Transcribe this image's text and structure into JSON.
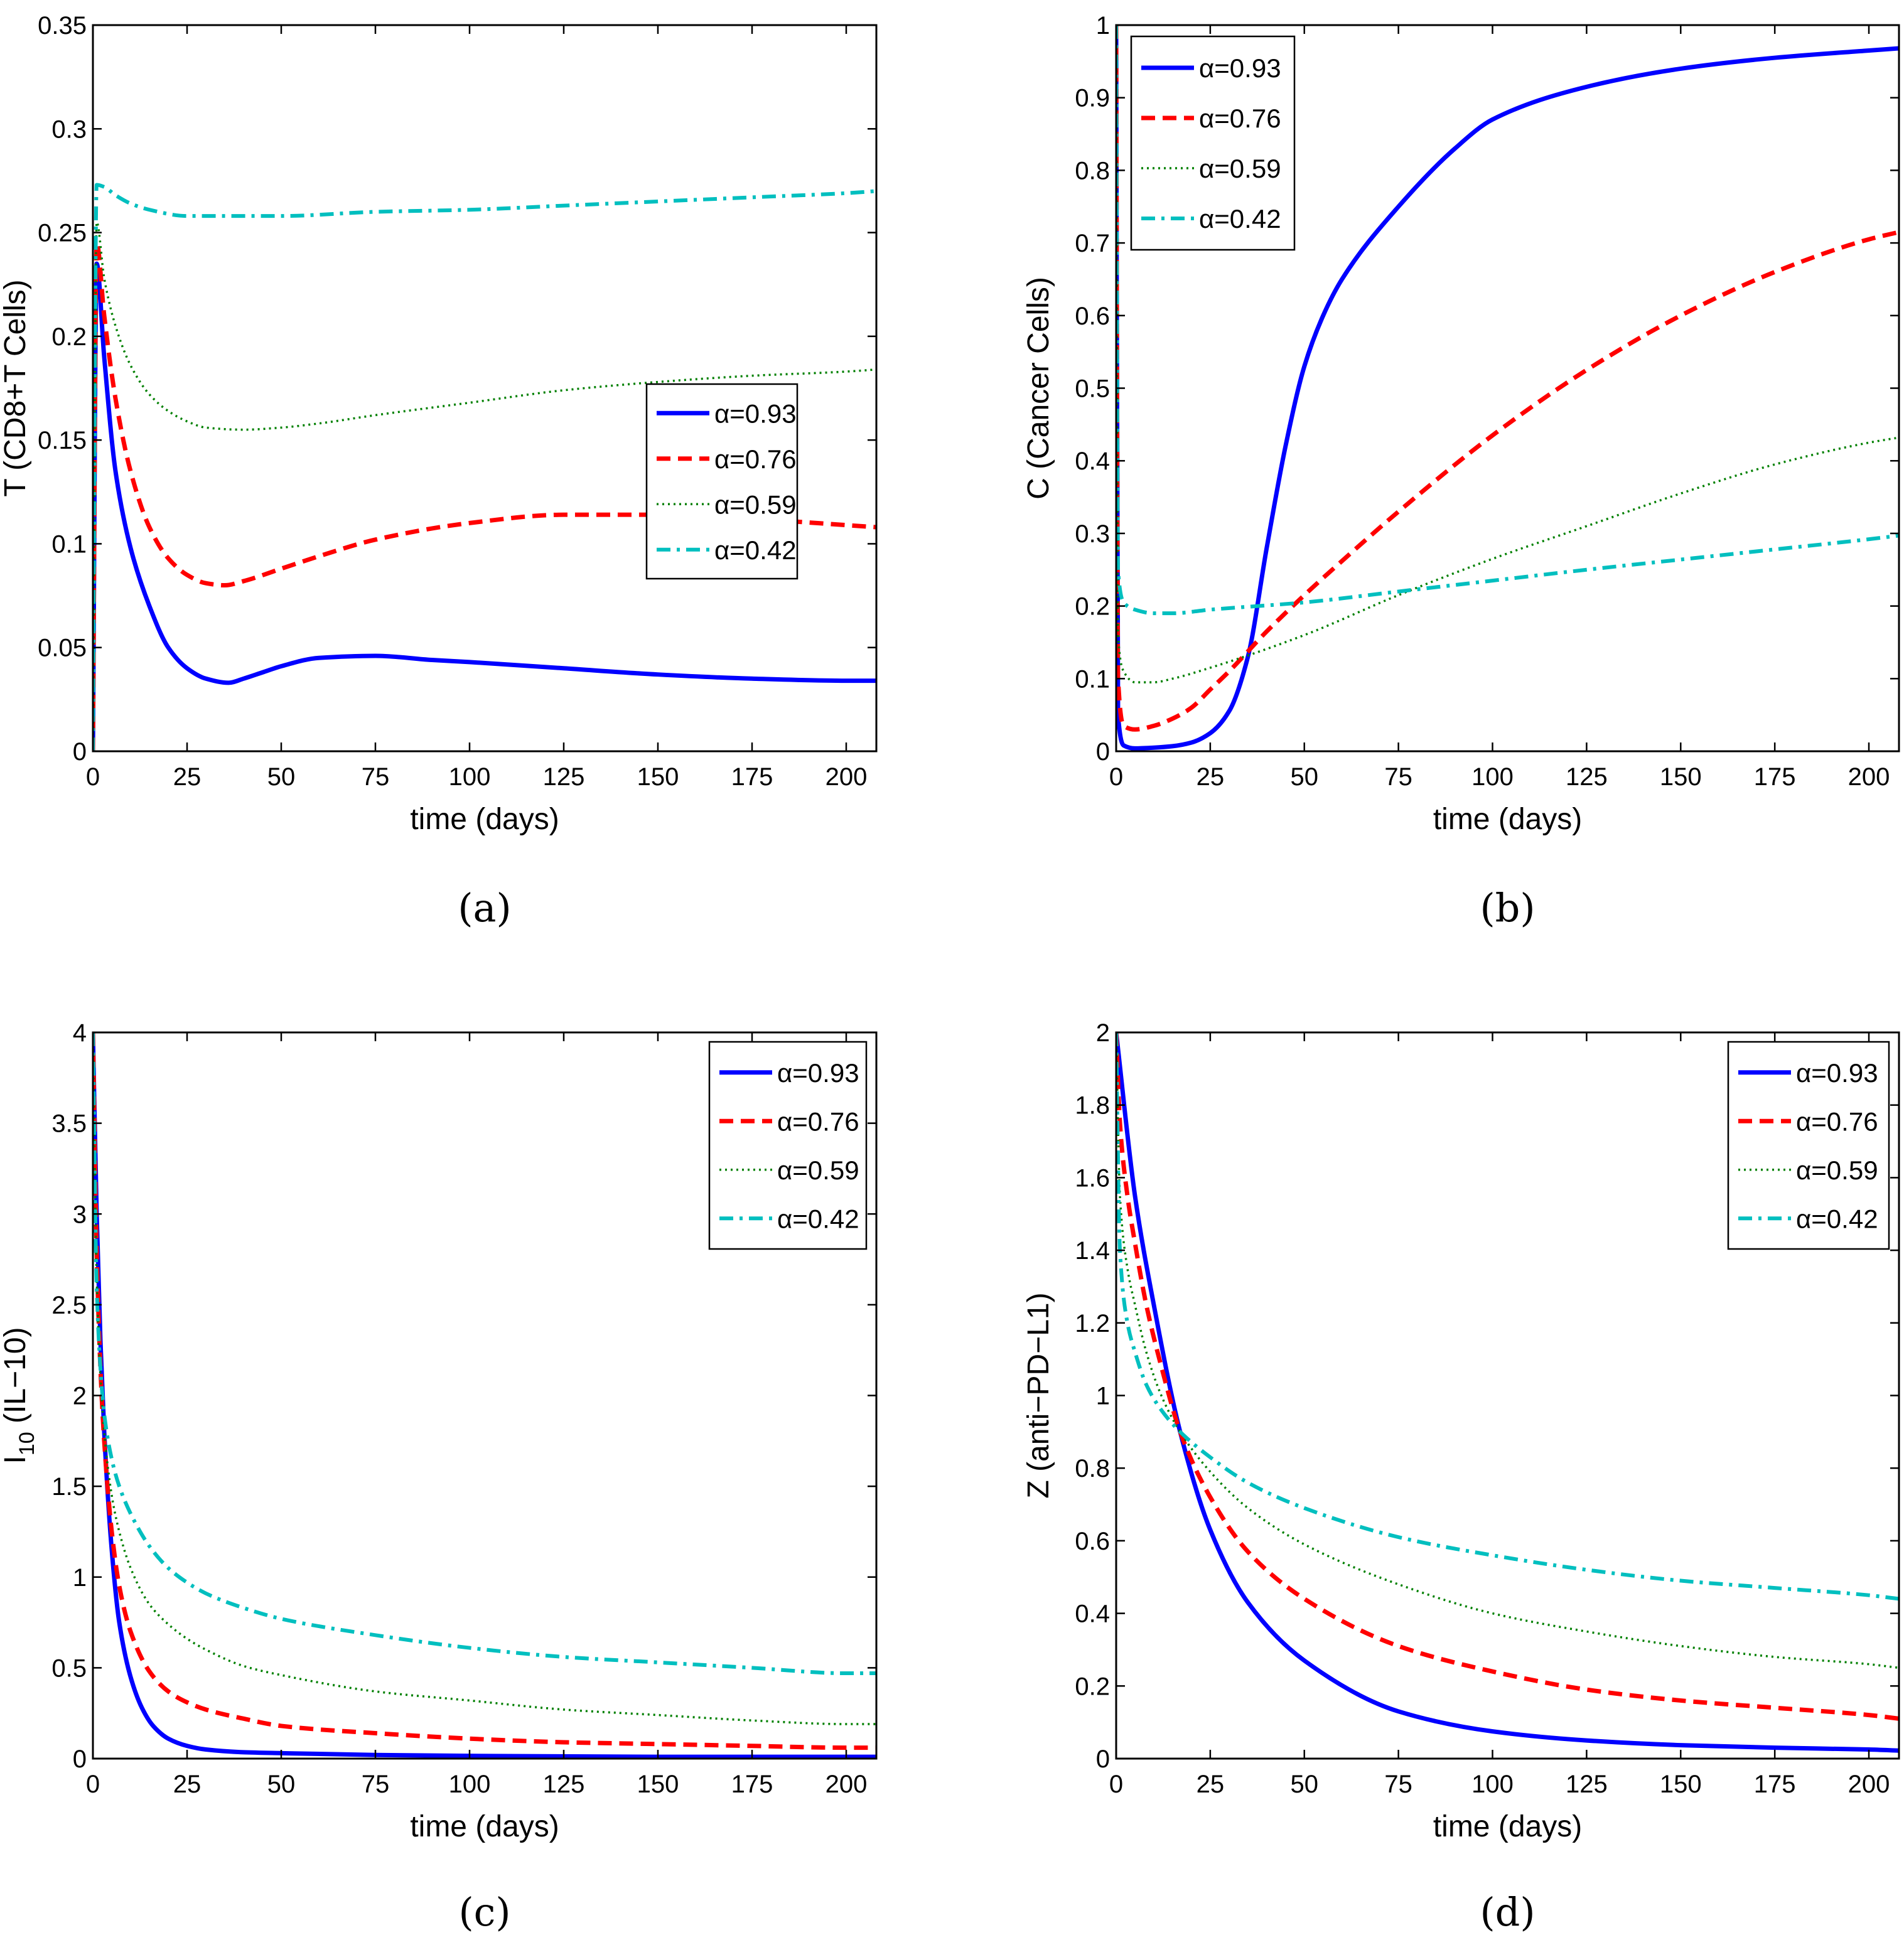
{
  "figure": {
    "panels": [
      "(a)",
      "(b)",
      "(c)",
      "(d)"
    ]
  },
  "styles": {
    "a93": {
      "color": "#0000ff",
      "dash": "solid"
    },
    "a76": {
      "color": "#ff0000",
      "dash": "dashed"
    },
    "a59": {
      "color": "#008000",
      "dash": "dotted"
    },
    "a42": {
      "color": "#00bfbf",
      "dash": "dashdot"
    }
  },
  "chart_data": [
    {
      "panel_label": "(a)",
      "type": "line",
      "xlabel": "time (days)",
      "ylabel": "T (CD8+T Cells)",
      "xlim": [
        0,
        208
      ],
      "ylim": [
        0,
        0.35
      ],
      "xticks": [
        0,
        25,
        50,
        75,
        100,
        125,
        150,
        175,
        200
      ],
      "yticks": [
        0,
        0.05,
        0.1,
        0.15,
        0.2,
        0.25,
        0.3,
        0.35
      ],
      "legend_position": "center-right",
      "series": [
        {
          "name": "α=0.93",
          "style": "a93",
          "x": [
            0,
            1,
            3,
            6,
            10,
            15,
            20,
            25,
            30,
            36,
            40,
            45,
            50,
            60,
            75,
            90,
            100,
            125,
            150,
            175,
            200,
            208
          ],
          "y": [
            0,
            0.235,
            0.19,
            0.135,
            0.098,
            0.07,
            0.05,
            0.04,
            0.035,
            0.033,
            0.035,
            0.038,
            0.041,
            0.045,
            0.046,
            0.044,
            0.043,
            0.04,
            0.037,
            0.035,
            0.034,
            0.034
          ]
        },
        {
          "name": "α=0.76",
          "style": "a76",
          "x": [
            0,
            1,
            3,
            6,
            10,
            15,
            20,
            25,
            30,
            35,
            40,
            50,
            60,
            75,
            100,
            125,
            150,
            175,
            200,
            208
          ],
          "y": [
            0,
            0.245,
            0.21,
            0.17,
            0.135,
            0.108,
            0.093,
            0.085,
            0.081,
            0.08,
            0.082,
            0.088,
            0.094,
            0.102,
            0.11,
            0.114,
            0.114,
            0.112,
            0.109,
            0.108
          ]
        },
        {
          "name": "α=0.59",
          "style": "a59",
          "x": [
            0,
            1,
            3,
            6,
            10,
            15,
            20,
            25,
            30,
            40,
            50,
            60,
            75,
            100,
            125,
            150,
            175,
            200,
            208
          ],
          "y": [
            0,
            0.255,
            0.228,
            0.205,
            0.186,
            0.172,
            0.164,
            0.159,
            0.156,
            0.155,
            0.156,
            0.158,
            0.162,
            0.168,
            0.174,
            0.178,
            0.181,
            0.183,
            0.184
          ]
        },
        {
          "name": "α=0.42",
          "style": "a42",
          "x": [
            0,
            1,
            3,
            6,
            10,
            15,
            25,
            35,
            50,
            75,
            100,
            125,
            150,
            175,
            200,
            208
          ],
          "y": [
            0,
            0.273,
            0.272,
            0.268,
            0.264,
            0.261,
            0.258,
            0.258,
            0.258,
            0.26,
            0.261,
            0.263,
            0.265,
            0.267,
            0.269,
            0.27
          ]
        }
      ]
    },
    {
      "panel_label": "(b)",
      "type": "line",
      "xlabel": "time (days)",
      "ylabel": "C (Cancer Cells)",
      "xlim": [
        0,
        208
      ],
      "ylim": [
        0,
        1
      ],
      "xticks": [
        0,
        25,
        50,
        75,
        100,
        125,
        150,
        175,
        200
      ],
      "yticks": [
        0,
        0.1,
        0.2,
        0.3,
        0.4,
        0.5,
        0.6,
        0.7,
        0.8,
        0.9,
        1
      ],
      "legend_position": "top-left",
      "series": [
        {
          "name": "α=0.93",
          "style": "a93",
          "x": [
            0,
            0.5,
            2,
            5,
            10,
            15,
            20,
            25,
            30,
            35,
            40,
            45,
            50,
            55,
            60,
            75,
            90,
            100,
            125,
            150,
            175,
            200,
            208
          ],
          "y": [
            1,
            0.05,
            0.008,
            0.004,
            0.005,
            0.007,
            0.012,
            0.025,
            0.055,
            0.13,
            0.28,
            0.42,
            0.53,
            0.6,
            0.65,
            0.75,
            0.83,
            0.87,
            0.915,
            0.94,
            0.955,
            0.965,
            0.968
          ]
        },
        {
          "name": "α=0.76",
          "style": "a76",
          "x": [
            0,
            0.5,
            2,
            5,
            10,
            15,
            20,
            25,
            30,
            40,
            50,
            60,
            75,
            100,
            125,
            150,
            175,
            200,
            208
          ],
          "y": [
            1,
            0.1,
            0.035,
            0.03,
            0.035,
            0.045,
            0.06,
            0.085,
            0.11,
            0.165,
            0.215,
            0.262,
            0.33,
            0.435,
            0.525,
            0.6,
            0.66,
            0.705,
            0.715
          ]
        },
        {
          "name": "α=0.59",
          "style": "a59",
          "x": [
            0,
            0.5,
            2,
            5,
            10,
            15,
            25,
            50,
            75,
            100,
            125,
            150,
            175,
            200,
            208
          ],
          "y": [
            1,
            0.16,
            0.11,
            0.095,
            0.095,
            0.1,
            0.115,
            0.16,
            0.215,
            0.265,
            0.31,
            0.355,
            0.395,
            0.425,
            0.432
          ]
        },
        {
          "name": "α=0.42",
          "style": "a42",
          "x": [
            0,
            0.5,
            2,
            5,
            10,
            15,
            25,
            50,
            75,
            100,
            125,
            150,
            175,
            200,
            208
          ],
          "y": [
            1,
            0.25,
            0.205,
            0.195,
            0.19,
            0.19,
            0.195,
            0.205,
            0.22,
            0.235,
            0.25,
            0.264,
            0.278,
            0.292,
            0.297
          ]
        }
      ]
    },
    {
      "panel_label": "(c)",
      "type": "line",
      "xlabel": "time (days)",
      "ylabel": "I10 (IL−10)",
      "ylabel_main": "I",
      "ylabel_sub": "10",
      "ylabel_rest": " (IL−10)",
      "xlim": [
        0,
        208
      ],
      "ylim": [
        0,
        4
      ],
      "xticks": [
        0,
        25,
        50,
        75,
        100,
        125,
        150,
        175,
        200
      ],
      "yticks": [
        0,
        0.5,
        1,
        1.5,
        2,
        2.5,
        3,
        3.5,
        4
      ],
      "legend_position": "top-right",
      "series": [
        {
          "name": "α=0.93",
          "style": "a93",
          "x": [
            0,
            1,
            2,
            3,
            5,
            7,
            10,
            13,
            16,
            20,
            25,
            30,
            40,
            50,
            75,
            100,
            150,
            200,
            208
          ],
          "y": [
            4,
            3.0,
            2.3,
            1.8,
            1.15,
            0.75,
            0.45,
            0.28,
            0.18,
            0.11,
            0.07,
            0.05,
            0.035,
            0.03,
            0.02,
            0.015,
            0.01,
            0.01,
            0.01
          ]
        },
        {
          "name": "α=0.76",
          "style": "a76",
          "x": [
            0,
            1,
            2,
            3,
            5,
            7,
            10,
            15,
            20,
            25,
            30,
            40,
            50,
            75,
            100,
            125,
            150,
            175,
            200,
            208
          ],
          "y": [
            4,
            2.8,
            2.15,
            1.75,
            1.25,
            0.95,
            0.7,
            0.48,
            0.37,
            0.31,
            0.27,
            0.22,
            0.18,
            0.14,
            0.11,
            0.09,
            0.08,
            0.07,
            0.06,
            0.06
          ]
        },
        {
          "name": "α=0.59",
          "style": "a59",
          "x": [
            0,
            1,
            2,
            3,
            5,
            7,
            10,
            15,
            20,
            25,
            30,
            40,
            50,
            75,
            100,
            125,
            150,
            175,
            200,
            208
          ],
          "y": [
            4,
            2.65,
            2.1,
            1.8,
            1.45,
            1.25,
            1.05,
            0.85,
            0.74,
            0.66,
            0.6,
            0.51,
            0.46,
            0.37,
            0.32,
            0.27,
            0.24,
            0.21,
            0.19,
            0.19
          ]
        },
        {
          "name": "α=0.42",
          "style": "a42",
          "x": [
            0,
            1,
            2,
            3,
            5,
            7,
            10,
            15,
            20,
            25,
            30,
            40,
            50,
            75,
            100,
            125,
            150,
            175,
            200,
            208
          ],
          "y": [
            4,
            2.6,
            2.15,
            1.9,
            1.65,
            1.5,
            1.35,
            1.17,
            1.05,
            0.97,
            0.91,
            0.83,
            0.77,
            0.68,
            0.61,
            0.56,
            0.53,
            0.5,
            0.47,
            0.47
          ]
        }
      ]
    },
    {
      "panel_label": "(d)",
      "type": "line",
      "xlabel": "time  (days)",
      "ylabel": "Z (anti−PD−L1)",
      "xlim": [
        0,
        208
      ],
      "ylim": [
        0,
        2
      ],
      "xticks": [
        0,
        25,
        50,
        75,
        100,
        125,
        150,
        175,
        200
      ],
      "yticks": [
        0,
        0.2,
        0.4,
        0.6,
        0.8,
        1,
        1.2,
        1.4,
        1.6,
        1.8,
        2
      ],
      "legend_position": "top-right",
      "series": [
        {
          "name": "α=0.93",
          "style": "a93",
          "x": [
            0,
            5,
            10,
            17,
            25,
            35,
            50,
            75,
            100,
            125,
            150,
            175,
            200,
            208
          ],
          "y": [
            2,
            1.55,
            1.25,
            0.9,
            0.63,
            0.43,
            0.27,
            0.13,
            0.075,
            0.05,
            0.037,
            0.03,
            0.025,
            0.022
          ]
        },
        {
          "name": "α=0.76",
          "style": "a76",
          "x": [
            0,
            1,
            3,
            5,
            8,
            12,
            17,
            25,
            35,
            50,
            75,
            100,
            125,
            150,
            175,
            200,
            208
          ],
          "y": [
            2,
            1.75,
            1.55,
            1.42,
            1.25,
            1.08,
            0.9,
            0.72,
            0.57,
            0.44,
            0.31,
            0.24,
            0.19,
            0.16,
            0.14,
            0.12,
            0.11
          ]
        },
        {
          "name": "α=0.59",
          "style": "a59",
          "x": [
            0,
            1,
            3,
            5,
            8,
            12,
            17,
            25,
            35,
            50,
            75,
            100,
            125,
            150,
            175,
            200,
            208
          ],
          "y": [
            2,
            1.55,
            1.35,
            1.25,
            1.12,
            1.0,
            0.9,
            0.79,
            0.69,
            0.59,
            0.48,
            0.4,
            0.35,
            0.31,
            0.28,
            0.26,
            0.25
          ]
        },
        {
          "name": "α=0.42",
          "style": "a42",
          "x": [
            0,
            1,
            3,
            5,
            8,
            12,
            17,
            25,
            35,
            50,
            75,
            100,
            125,
            150,
            175,
            200,
            208
          ],
          "y": [
            2,
            1.4,
            1.2,
            1.12,
            1.03,
            0.96,
            0.9,
            0.83,
            0.76,
            0.69,
            0.61,
            0.56,
            0.52,
            0.49,
            0.47,
            0.45,
            0.44
          ]
        }
      ]
    }
  ]
}
